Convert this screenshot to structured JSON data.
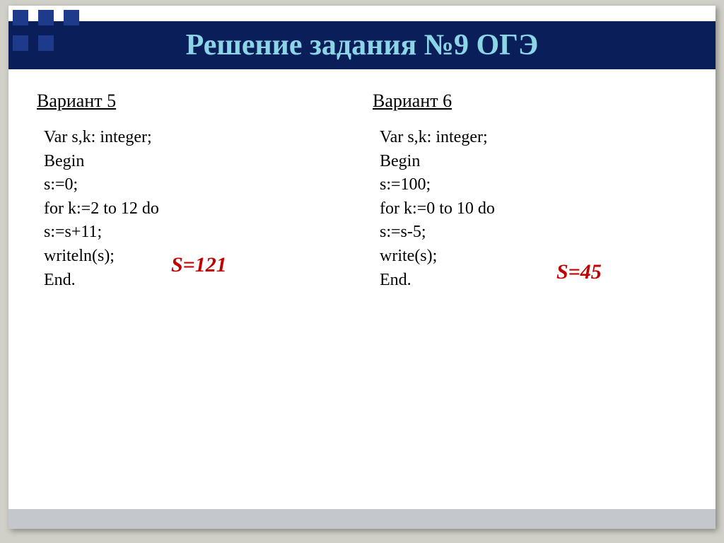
{
  "header": {
    "title": "Решение задания №9 ОГЭ"
  },
  "columns": [
    {
      "title": "Вариант 5",
      "code": [
        "Var s,k: integer;",
        "Begin",
        "s:=0;",
        "for k:=2 to 12 do",
        "s:=s+11;",
        "writeln(s);",
        "End."
      ],
      "answer": "S=121"
    },
    {
      "title": "Вариант 6",
      "code": [
        "Var s,k: integer;",
        "Begin",
        "s:=100;",
        "for k:=0 to 10 do",
        "s:=s-5;",
        "write(s);",
        "End."
      ],
      "answer": "S=45"
    }
  ],
  "styles": {
    "header_bg": "#0a1e5a",
    "header_color": "#8bd5e6",
    "answer_color": "#c00000",
    "slide_bg": "#ffffff",
    "body_bg": "#d0d0c8",
    "square_color": "#1e3a8a",
    "bottom_bar": "#c4c8cc"
  }
}
